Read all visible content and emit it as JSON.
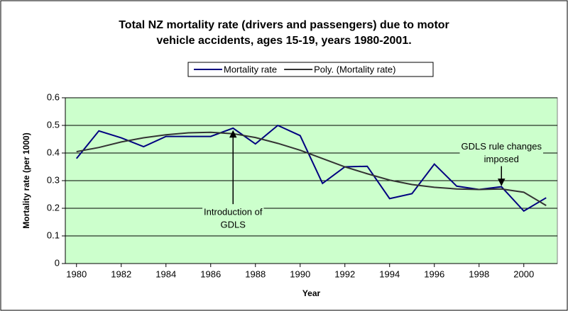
{
  "chart_data": {
    "type": "line",
    "title": [
      "Total NZ mortality rate (drivers and passengers) due to motor",
      "vehicle accidents, ages 15-19, years 1980-2001."
    ],
    "x_label": "Year",
    "y_label": "Mortality rate (per 1000)",
    "x": [
      1980,
      1981,
      1982,
      1983,
      1984,
      1985,
      1986,
      1987,
      1988,
      1989,
      1990,
      1991,
      1992,
      1993,
      1994,
      1995,
      1996,
      1997,
      1998,
      1999,
      2000,
      2001
    ],
    "xlim": [
      1979.5,
      2001.5
    ],
    "xticks": [
      1980,
      1982,
      1984,
      1986,
      1988,
      1990,
      1992,
      1994,
      1996,
      1998,
      2000
    ],
    "ylim": [
      0,
      0.6
    ],
    "yticks": [
      {
        "value": 0,
        "label": "0"
      },
      0.1,
      0.2,
      0.3,
      0.4,
      0.5,
      0.6
    ],
    "grid": true,
    "plot_background": "#ccffcc",
    "legend": "top",
    "series": [
      {
        "name": "Mortality rate",
        "color": "#000080",
        "values": [
          0.38,
          0.48,
          0.455,
          0.423,
          0.46,
          0.46,
          0.46,
          0.49,
          0.433,
          0.5,
          0.463,
          0.29,
          0.35,
          0.352,
          0.235,
          0.253,
          0.36,
          0.28,
          0.268,
          0.278,
          0.19,
          0.238
        ]
      },
      {
        "name": "Poly. (Mortality rate)",
        "color": "#333333",
        "values": [
          0.405,
          0.42,
          0.44,
          0.455,
          0.466,
          0.473,
          0.475,
          0.47,
          0.456,
          0.435,
          0.41,
          0.38,
          0.35,
          0.325,
          0.302,
          0.286,
          0.276,
          0.27,
          0.268,
          0.27,
          0.258,
          0.21
        ]
      }
    ],
    "annotations": [
      {
        "text": [
          "Introduction of",
          "GDLS"
        ],
        "x": 1987,
        "from": 0.215,
        "to": 0.48
      },
      {
        "text": [
          "GDLS rule changes",
          "imposed"
        ],
        "x": 1999,
        "from": 0.355,
        "to": 0.283
      }
    ]
  }
}
